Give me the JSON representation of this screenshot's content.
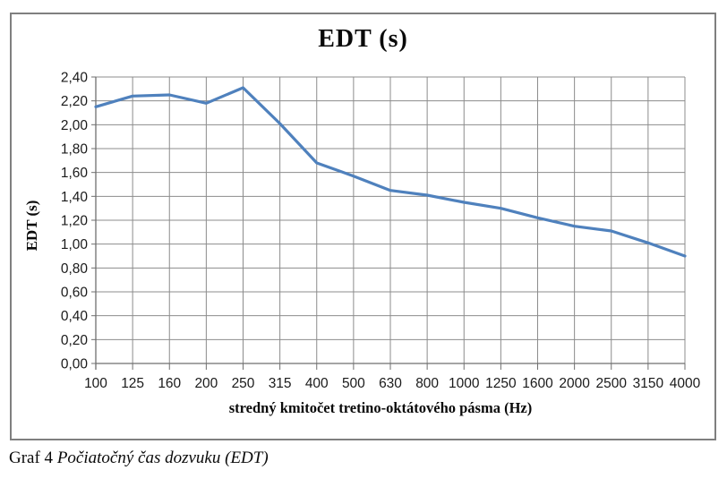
{
  "figure": {
    "caption_prefix": "Graf 4 ",
    "caption_italic": "Počiatočný čas dozvuku (EDT)"
  },
  "chart_data": {
    "type": "line",
    "title": "EDT (s)",
    "xlabel": "stredný kmitočet tretino-oktátového pásma (Hz)",
    "ylabel": "EDT (s)",
    "series_name": "EDT",
    "categories": [
      "100",
      "125",
      "160",
      "200",
      "250",
      "315",
      "400",
      "500",
      "630",
      "800",
      "1000",
      "1250",
      "1600",
      "2000",
      "2500",
      "3150",
      "4000"
    ],
    "values": [
      2.15,
      2.24,
      2.25,
      2.18,
      2.31,
      2.01,
      1.68,
      1.57,
      1.45,
      1.41,
      1.35,
      1.3,
      1.22,
      1.15,
      1.11,
      1.01,
      0.9
    ],
    "ylim": [
      0,
      2.4
    ],
    "ytick_step": 0.2,
    "ytick_labels": [
      "0,00",
      "0,20",
      "0,40",
      "0,60",
      "0,80",
      "1,00",
      "1,20",
      "1,40",
      "1,60",
      "1,80",
      "2,00",
      "2,20",
      "2,40"
    ],
    "grid": true,
    "legend": "none",
    "line_color": "#4F81BD",
    "grid_color": "#8c8c8c",
    "axis_color": "#6f6f6f",
    "tick_label_color": "#1a1a1a"
  }
}
